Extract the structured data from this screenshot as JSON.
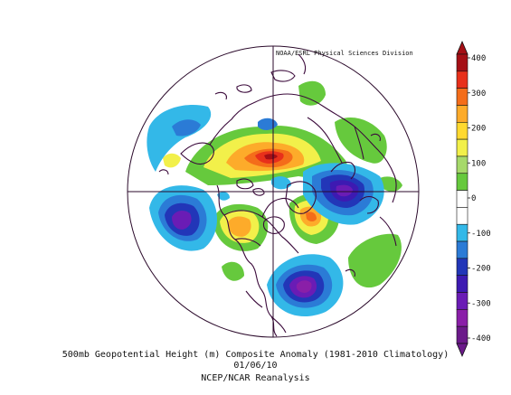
{
  "map": {
    "credit": "NOAA/ESRL Physical Sciences Division",
    "title": "500mb Geopotential Height (m) Composite Anomaly (1981-2010 Climatology)",
    "date": "01/06/10",
    "source": "NCEP/NCAR Reanalysis"
  },
  "colorbar": {
    "labels": [
      "400",
      "300",
      "200",
      "100",
      "0",
      "-100",
      "-200",
      "-300",
      "-400"
    ],
    "colors": [
      "#a50f15",
      "#e8301b",
      "#f46d1a",
      "#fdab2a",
      "#ffd92f",
      "#f2f04a",
      "#a6d96a",
      "#66c93d",
      "#ffffff",
      "#ffffff",
      "#33b8e8",
      "#2b7bd6",
      "#2236b8",
      "#3d1ab2",
      "#6a1cb5",
      "#8a1fa8",
      "#6b1a8a"
    ]
  },
  "colors": {
    "coastline": "#3b0a3b",
    "grid": "#2b0a2b"
  }
}
